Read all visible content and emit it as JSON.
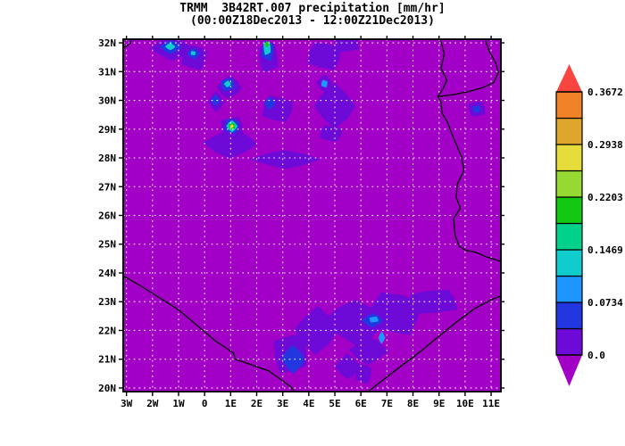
{
  "header": {
    "title": "TRMM  3B42RT.007 precipitation [mm/hr]",
    "subtitle": "(00:00Z18Dec2013 - 12:00Z21Dec2013)"
  },
  "chart_data": {
    "type": "heatmap",
    "title": "TRMM  3B42RT.007 precipitation [mm/hr]",
    "subtitle": "(00:00Z18Dec2013 - 12:00Z21Dec2013)",
    "units": "mm/hr",
    "x_axis": {
      "range": [
        -3.125,
        11.375
      ],
      "tick_values": [
        -3,
        -2,
        -1,
        0,
        1,
        2,
        3,
        4,
        5,
        6,
        7,
        8,
        9,
        10,
        11
      ],
      "tick_labels": [
        "3W",
        "2W",
        "1W",
        "0",
        "1E",
        "2E",
        "3E",
        "4E",
        "5E",
        "6E",
        "7E",
        "8E",
        "9E",
        "10E",
        "11E"
      ]
    },
    "y_axis": {
      "range": [
        19.875,
        32.125
      ],
      "tick_values": [
        20,
        21,
        22,
        23,
        24,
        25,
        26,
        27,
        28,
        29,
        30,
        31,
        32
      ],
      "tick_labels": [
        "20N",
        "21N",
        "22N",
        "23N",
        "24N",
        "25N",
        "26N",
        "27N",
        "28N",
        "29N",
        "30N",
        "31N",
        "32N"
      ]
    },
    "grid": {
      "color": "#E9E9E9",
      "style": "dotted"
    },
    "colorbar": {
      "tick_labels": [
        "0.0",
        "0.0734",
        "0.1469",
        "0.2203",
        "0.2938",
        "0.3672"
      ],
      "tick_values": [
        0.0,
        0.0734,
        0.1469,
        0.2203,
        0.2938,
        0.3672
      ],
      "level_step": 0.03672,
      "below_color": "#A300C7",
      "above_color": "#F9453F",
      "segment_colors": [
        "#6E0AD8",
        "#2337E0",
        "#1E96FF",
        "#10CCCC",
        "#00D28C",
        "#12C812",
        "#96D932",
        "#E6DC3C",
        "#DFA62E",
        "#F08228"
      ]
    },
    "precip_features": [
      {
        "lon": -1.25,
        "lat": 31.8,
        "rx": 0.85,
        "ry": 0.42,
        "level": 1
      },
      {
        "lon": -0.4,
        "lat": 31.5,
        "rx": 0.55,
        "ry": 0.5,
        "level": 1
      },
      {
        "lon": 2.45,
        "lat": 31.5,
        "rx": 0.42,
        "ry": 0.62,
        "level": 1
      },
      {
        "lon": 0.95,
        "lat": 30.45,
        "rx": 0.5,
        "ry": 0.42,
        "level": 1
      },
      {
        "lon": 0.45,
        "lat": 29.95,
        "rx": 0.32,
        "ry": 0.36,
        "level": 1
      },
      {
        "lon": 2.8,
        "lat": 29.7,
        "rx": 0.68,
        "ry": 0.52,
        "level": 1
      },
      {
        "lon": 1.05,
        "lat": 29.05,
        "rx": 0.5,
        "ry": 0.45,
        "level": 1
      },
      {
        "lon": 1.0,
        "lat": 28.5,
        "rx": 1.05,
        "ry": 0.52,
        "level": 1
      },
      {
        "lon": 3.1,
        "lat": 27.95,
        "rx": 1.35,
        "ry": 0.33,
        "level": 1
      },
      {
        "lon": 4.6,
        "lat": 31.55,
        "rx": 0.75,
        "ry": 0.55,
        "level": 1
      },
      {
        "lon": 5.45,
        "lat": 31.95,
        "rx": 0.55,
        "ry": 0.32,
        "level": 1
      },
      {
        "lon": 4.6,
        "lat": 30.6,
        "rx": 0.32,
        "ry": 0.3,
        "level": 1
      },
      {
        "lon": 5.0,
        "lat": 29.8,
        "rx": 0.8,
        "ry": 0.8,
        "level": 1
      },
      {
        "lon": 4.85,
        "lat": 28.85,
        "rx": 0.5,
        "ry": 0.33,
        "level": 1
      },
      {
        "lon": 10.45,
        "lat": 29.7,
        "rx": 0.38,
        "ry": 0.32,
        "level": 1
      },
      {
        "lon": 4.3,
        "lat": 22.0,
        "rx": 0.85,
        "ry": 0.85,
        "level": 1
      },
      {
        "lon": 5.8,
        "lat": 22.3,
        "rx": 1.25,
        "ry": 0.8,
        "level": 1
      },
      {
        "lon": 7.3,
        "lat": 22.6,
        "rx": 1.15,
        "ry": 0.85,
        "level": 1
      },
      {
        "lon": 8.8,
        "lat": 23.0,
        "rx": 1.05,
        "ry": 0.5,
        "level": 1
      },
      {
        "lon": 6.3,
        "lat": 21.3,
        "rx": 0.75,
        "ry": 0.5,
        "level": 1
      },
      {
        "lon": 5.5,
        "lat": 20.75,
        "rx": 0.5,
        "ry": 0.45,
        "level": 1
      },
      {
        "lon": 6.1,
        "lat": 20.5,
        "rx": 0.35,
        "ry": 0.4,
        "level": 1
      },
      {
        "lon": 3.3,
        "lat": 21.2,
        "rx": 0.75,
        "ry": 0.8,
        "level": 1
      },
      {
        "lon": -1.3,
        "lat": 31.85,
        "rx": 0.42,
        "ry": 0.25,
        "level": 2
      },
      {
        "lon": -0.42,
        "lat": 31.62,
        "rx": 0.25,
        "ry": 0.2,
        "level": 2
      },
      {
        "lon": 2.42,
        "lat": 31.72,
        "rx": 0.27,
        "ry": 0.4,
        "level": 2
      },
      {
        "lon": 0.9,
        "lat": 30.55,
        "rx": 0.3,
        "ry": 0.26,
        "level": 2
      },
      {
        "lon": 0.42,
        "lat": 30.0,
        "rx": 0.16,
        "ry": 0.2,
        "level": 2
      },
      {
        "lon": 2.5,
        "lat": 29.9,
        "rx": 0.22,
        "ry": 0.22,
        "level": 2
      },
      {
        "lon": 1.05,
        "lat": 29.1,
        "rx": 0.32,
        "ry": 0.3,
        "level": 2
      },
      {
        "lon": 10.45,
        "lat": 29.7,
        "rx": 0.18,
        "ry": 0.15,
        "level": 2
      },
      {
        "lon": 6.45,
        "lat": 22.35,
        "rx": 0.42,
        "ry": 0.25,
        "level": 2
      },
      {
        "lon": 3.4,
        "lat": 21.0,
        "rx": 0.45,
        "ry": 0.5,
        "level": 2
      },
      {
        "lon": 4.6,
        "lat": 30.58,
        "rx": 0.14,
        "ry": 0.15,
        "level": 3
      },
      {
        "lon": 6.5,
        "lat": 22.38,
        "rx": 0.2,
        "ry": 0.12,
        "level": 3
      },
      {
        "lon": 6.8,
        "lat": 21.75,
        "rx": 0.13,
        "ry": 0.22,
        "level": 3
      },
      {
        "lon": -1.32,
        "lat": 31.87,
        "rx": 0.2,
        "ry": 0.13,
        "level": 4
      },
      {
        "lon": -0.44,
        "lat": 31.64,
        "rx": 0.11,
        "ry": 0.09,
        "level": 4
      },
      {
        "lon": 2.4,
        "lat": 31.82,
        "rx": 0.16,
        "ry": 0.28,
        "level": 4
      },
      {
        "lon": 0.88,
        "lat": 30.57,
        "rx": 0.14,
        "ry": 0.12,
        "level": 4
      },
      {
        "lon": 1.05,
        "lat": 29.1,
        "rx": 0.22,
        "ry": 0.21,
        "level": 4
      },
      {
        "lon": 2.4,
        "lat": 31.95,
        "rx": 0.08,
        "ry": 0.12,
        "level": 6
      },
      {
        "lon": 1.05,
        "lat": 29.1,
        "rx": 0.14,
        "ry": 0.14,
        "level": 6
      },
      {
        "lon": 1.05,
        "lat": 29.1,
        "rx": 0.07,
        "ry": 0.07,
        "level": 8
      }
    ],
    "borders": [
      [
        [
          -2.8,
          32.125
        ],
        [
          -2.87,
          31.97
        ],
        [
          -3.05,
          31.86
        ],
        [
          -3.125,
          31.83
        ]
      ],
      [
        [
          9.05,
          32.125
        ],
        [
          9.2,
          31.62
        ],
        [
          9.08,
          31.12
        ],
        [
          9.3,
          30.7
        ],
        [
          9.14,
          30.38
        ],
        [
          8.95,
          30.13
        ],
        [
          9.07,
          29.96
        ],
        [
          9.12,
          29.55
        ],
        [
          9.32,
          29.25
        ],
        [
          9.5,
          28.82
        ],
        [
          9.86,
          28.05
        ],
        [
          9.96,
          27.58
        ],
        [
          9.7,
          27.08
        ],
        [
          9.66,
          26.62
        ],
        [
          9.82,
          26.25
        ],
        [
          9.56,
          25.9
        ],
        [
          9.62,
          25.3
        ],
        [
          9.78,
          24.92
        ],
        [
          10.05,
          24.78
        ],
        [
          10.4,
          24.72
        ],
        [
          10.85,
          24.55
        ],
        [
          11.375,
          24.4
        ]
      ],
      [
        [
          10.78,
          32.125
        ],
        [
          10.92,
          31.72
        ],
        [
          11.17,
          31.32
        ],
        [
          11.28,
          30.98
        ],
        [
          11.1,
          30.62
        ],
        [
          10.68,
          30.44
        ],
        [
          10.12,
          30.3
        ],
        [
          9.55,
          30.2
        ],
        [
          8.95,
          30.13
        ]
      ],
      [
        [
          -3.125,
          23.9
        ],
        [
          -2.4,
          23.52
        ],
        [
          -1.0,
          22.72
        ],
        [
          0.4,
          21.65
        ],
        [
          1.1,
          21.22
        ],
        [
          1.18,
          21.0
        ],
        [
          1.75,
          20.82
        ],
        [
          2.45,
          20.6
        ],
        [
          2.95,
          20.28
        ],
        [
          3.3,
          20.05
        ],
        [
          3.45,
          19.875
        ]
      ],
      [
        [
          6.28,
          19.875
        ],
        [
          6.9,
          20.32
        ],
        [
          7.6,
          20.8
        ],
        [
          8.3,
          21.28
        ],
        [
          9.0,
          21.8
        ],
        [
          9.65,
          22.28
        ],
        [
          10.35,
          22.75
        ],
        [
          11.0,
          23.07
        ],
        [
          11.375,
          23.2
        ]
      ]
    ]
  }
}
